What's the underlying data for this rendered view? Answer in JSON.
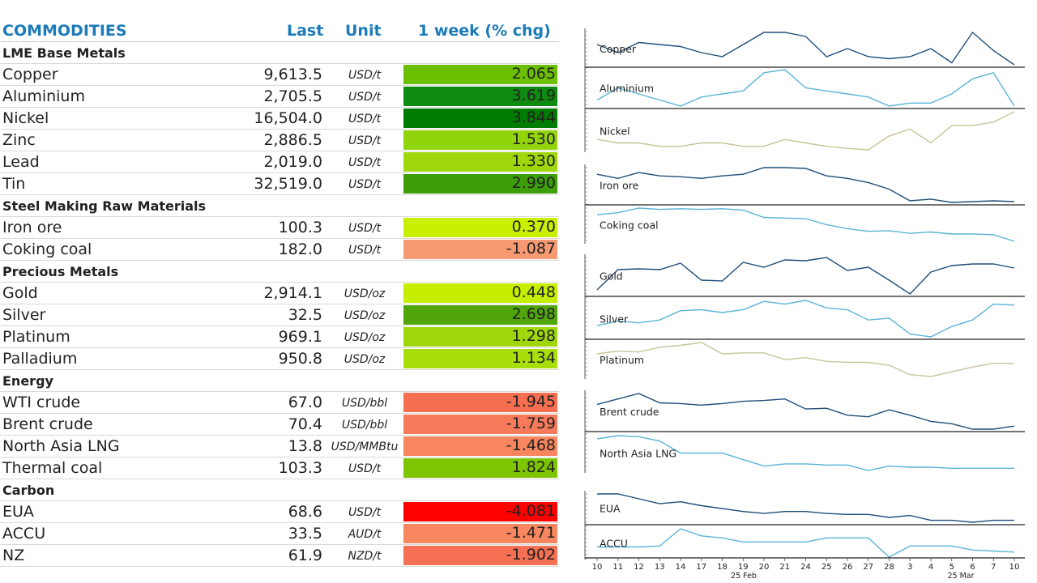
{
  "header": {
    "title": "COMMODITIES",
    "last": "Last",
    "unit": "Unit",
    "chg": "1 week (% chg)"
  },
  "groups": [
    {
      "name": "LME Base Metals",
      "rows": [
        {
          "name": "Copper",
          "last": "9,613.5",
          "unit": "USD/t",
          "chg": "2.065",
          "color": "#6cbf00"
        },
        {
          "name": "Aluminium",
          "last": "2,705.5",
          "unit": "USD/t",
          "chg": "3.619",
          "color": "#0f8a10"
        },
        {
          "name": "Nickel",
          "last": "16,504.0",
          "unit": "USD/t",
          "chg": "3.844",
          "color": "#007d00"
        },
        {
          "name": "Zinc",
          "last": "2,886.5",
          "unit": "USD/t",
          "chg": "1.530",
          "color": "#92d40b"
        },
        {
          "name": "Lead",
          "last": "2,019.0",
          "unit": "USD/t",
          "chg": "1.330",
          "color": "#9ed80c"
        },
        {
          "name": "Tin",
          "last": "32,519.0",
          "unit": "USD/t",
          "chg": "2.990",
          "color": "#3e9e0a"
        }
      ]
    },
    {
      "name": "Steel Making Raw Materials",
      "rows": [
        {
          "name": "Iron ore",
          "last": "100.3",
          "unit": "USD/t",
          "chg": "0.370",
          "color": "#c8f000"
        },
        {
          "name": "Coking coal",
          "last": "182.0",
          "unit": "USD/t",
          "chg": "-1.087",
          "color": "#f79a72"
        }
      ]
    },
    {
      "name": "Precious Metals",
      "rows": [
        {
          "name": "Gold",
          "last": "2,914.1",
          "unit": "USD/oz",
          "chg": "0.448",
          "color": "#c6ef00"
        },
        {
          "name": "Silver",
          "last": "32.5",
          "unit": "USD/oz",
          "chg": "2.698",
          "color": "#4fa50a"
        },
        {
          "name": "Platinum",
          "last": "969.1",
          "unit": "USD/oz",
          "chg": "1.298",
          "color": "#9ed80c"
        },
        {
          "name": "Palladium",
          "last": "950.8",
          "unit": "USD/oz",
          "chg": "1.134",
          "color": "#a8df0a"
        }
      ]
    },
    {
      "name": "Energy",
      "rows": [
        {
          "name": "WTI crude",
          "last": "67.0",
          "unit": "USD/bbl",
          "chg": "-1.945",
          "color": "#f66e50"
        },
        {
          "name": "Brent crude",
          "last": "70.4",
          "unit": "USD/bbl",
          "chg": "-1.759",
          "color": "#f77a5a"
        },
        {
          "name": "North Asia LNG",
          "last": "13.8",
          "unit": "USD/MMBtu",
          "chg": "-1.468",
          "color": "#f8865e"
        },
        {
          "name": "Thermal coal",
          "last": "103.3",
          "unit": "USD/t",
          "chg": "1.824",
          "color": "#7cc500"
        }
      ]
    },
    {
      "name": "Carbon",
      "rows": [
        {
          "name": "EUA",
          "last": "68.6",
          "unit": "USD/t",
          "chg": "-4.081",
          "color": "#ff0000"
        },
        {
          "name": "ACCU",
          "last": "33.5",
          "unit": "AUD/t",
          "chg": "-1.471",
          "color": "#f8865e"
        },
        {
          "name": "NZ",
          "last": "61.9",
          "unit": "NZD/t",
          "chg": "-1.902",
          "color": "#f67054"
        }
      ]
    }
  ],
  "chart_data": {
    "type": "line",
    "x": [
      "10",
      "11",
      "12",
      "13",
      "14",
      "17",
      "18",
      "19",
      "20",
      "21",
      "24",
      "25",
      "26",
      "27",
      "28",
      "3",
      "4",
      "5",
      "6",
      "7",
      "10"
    ],
    "month_labels": [
      "25 Feb",
      "25 Mar"
    ],
    "series": [
      {
        "name": "Copper",
        "color": "#1f4e79",
        "values": [
          6,
          4,
          6.5,
          6,
          5.5,
          4,
          3,
          6,
          9,
          9,
          8,
          3,
          5,
          3,
          2.5,
          3,
          5,
          1.5,
          9,
          4.5,
          1
        ]
      },
      {
        "name": "Aluminium",
        "color": "#5ab4d6",
        "values": [
          2,
          4,
          3,
          2,
          1,
          2.5,
          3,
          3.5,
          6.5,
          7,
          4,
          3.5,
          3,
          2.5,
          1,
          1.5,
          1.5,
          3,
          5.5,
          6.5,
          1
        ]
      },
      {
        "name": "Nickel",
        "color": "#c8c49a",
        "values": [
          2.5,
          2,
          2,
          1.5,
          1.5,
          2,
          2,
          1.5,
          1.5,
          2.5,
          2,
          1.5,
          1.2,
          1,
          3,
          4,
          2,
          4.5,
          4.5,
          5,
          6.5
        ]
      },
      {
        "name": "Iron ore",
        "color": "#1f4e79",
        "values": [
          5,
          4.5,
          5.2,
          4.8,
          4.7,
          4.5,
          4.8,
          5.0,
          5.8,
          5.8,
          5.7,
          4.8,
          4.5,
          4.0,
          3.2,
          1.8,
          2.0,
          1.6,
          1.7,
          1.8,
          1.7
        ]
      },
      {
        "name": "Coking coal",
        "color": "#5ab4d6",
        "values": [
          6,
          6.3,
          7,
          6.8,
          6.9,
          6.8,
          6.9,
          6.7,
          5.6,
          5.5,
          5.4,
          4.5,
          3.9,
          3.5,
          3.6,
          3.2,
          3.4,
          3.1,
          3.1,
          3.0,
          2.0
        ]
      },
      {
        "name": "Gold",
        "color": "#1f4e79",
        "values": [
          2,
          4.5,
          4.6,
          4.5,
          5.3,
          3.2,
          3.1,
          5.4,
          4.8,
          5.7,
          5.6,
          6.0,
          4.4,
          4.8,
          3.2,
          1.5,
          4.2,
          5.0,
          5.2,
          5.2,
          4.7
        ]
      },
      {
        "name": "Silver",
        "color": "#5ab4d6",
        "values": [
          3,
          3.5,
          3.3,
          3.6,
          4.6,
          4.7,
          4.4,
          4.7,
          5.6,
          5.3,
          5.7,
          4.9,
          4.7,
          3.6,
          3.8,
          2.1,
          1.8,
          2.9,
          3.6,
          5.3,
          5.2
        ]
      },
      {
        "name": "Platinum",
        "color": "#c8c49a",
        "values": [
          4.2,
          4.5,
          4.4,
          4.9,
          5.1,
          5.4,
          4.2,
          4.3,
          4.3,
          3.6,
          3.8,
          3.4,
          3.3,
          3.3,
          3.0,
          2.0,
          1.8,
          2.3,
          2.8,
          3.2,
          3.2
        ]
      },
      {
        "name": "Brent crude",
        "color": "#1f4e79",
        "values": [
          4.2,
          4.9,
          5.6,
          4.4,
          4.3,
          4.1,
          4.3,
          4.6,
          4.7,
          4.9,
          3.6,
          3.7,
          2.8,
          2.6,
          3.5,
          2.8,
          2.0,
          1.7,
          1.0,
          1.0,
          1.4
        ]
      },
      {
        "name": "North Asia LNG",
        "color": "#5ab4d6",
        "values": [
          4.3,
          4.6,
          4.5,
          4.1,
          3.0,
          3.0,
          3.0,
          2.4,
          1.8,
          2.0,
          2.0,
          1.9,
          1.9,
          1.4,
          1.8,
          1.7,
          1.7,
          1.6,
          1.6,
          1.6,
          1.6
        ]
      },
      {
        "name": "EUA",
        "color": "#1f4e79",
        "values": [
          5,
          5,
          4.5,
          4,
          4.2,
          3.8,
          3.5,
          3.2,
          3,
          3.2,
          3.2,
          3,
          2.9,
          2.9,
          2.6,
          2.8,
          2.3,
          2.3,
          2.1,
          2.3,
          2.3
        ]
      },
      {
        "name": "ACCU",
        "color": "#5ab4d6",
        "values": [
          2.5,
          2.5,
          2.5,
          2.6,
          4.3,
          3.6,
          3.4,
          3.0,
          3.0,
          3.0,
          3.0,
          3.4,
          3.4,
          3.4,
          1.5,
          2.6,
          2.6,
          2.6,
          2.2,
          2.1,
          2.0
        ]
      }
    ]
  }
}
